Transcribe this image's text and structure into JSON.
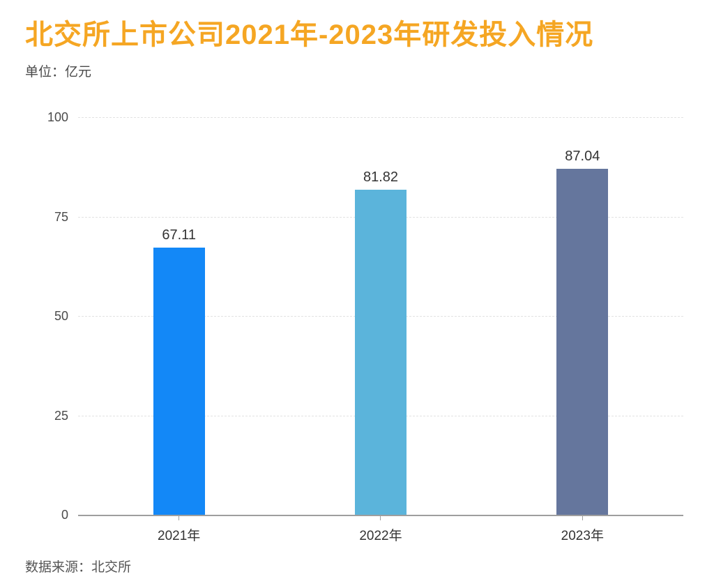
{
  "header": {
    "title": "北交所上市公司2021年-2023年研发投入情况",
    "subtitle": "单位：亿元"
  },
  "chart_data": {
    "type": "bar",
    "title": "北交所上市公司2021年-2023年研发投入情况",
    "unit_label": "单位：亿元",
    "categories": [
      "2021年",
      "2022年",
      "2023年"
    ],
    "values": [
      67.11,
      81.82,
      87.04
    ],
    "bar_colors": [
      "#1388F7",
      "#5BB4DB",
      "#65769D"
    ],
    "xlabel": "",
    "ylabel": "亿元",
    "ylim": [
      0,
      100
    ],
    "yticks": [
      0,
      25,
      50,
      75,
      100
    ],
    "grid": "horizontal dashed gridlines at 25/50/75/100",
    "legend": "none",
    "value_labels_shown": true
  },
  "footer": {
    "source": "数据来源：北交所"
  },
  "colors": {
    "title": "#F5A623",
    "subtitle": "#4a4a4a",
    "axis_line": "#9e9e9e",
    "gridline": "#e2e2e2",
    "tick_label": "#4a4a4a",
    "value_label": "#333333",
    "footer": "#555555",
    "background": "#ffffff"
  }
}
